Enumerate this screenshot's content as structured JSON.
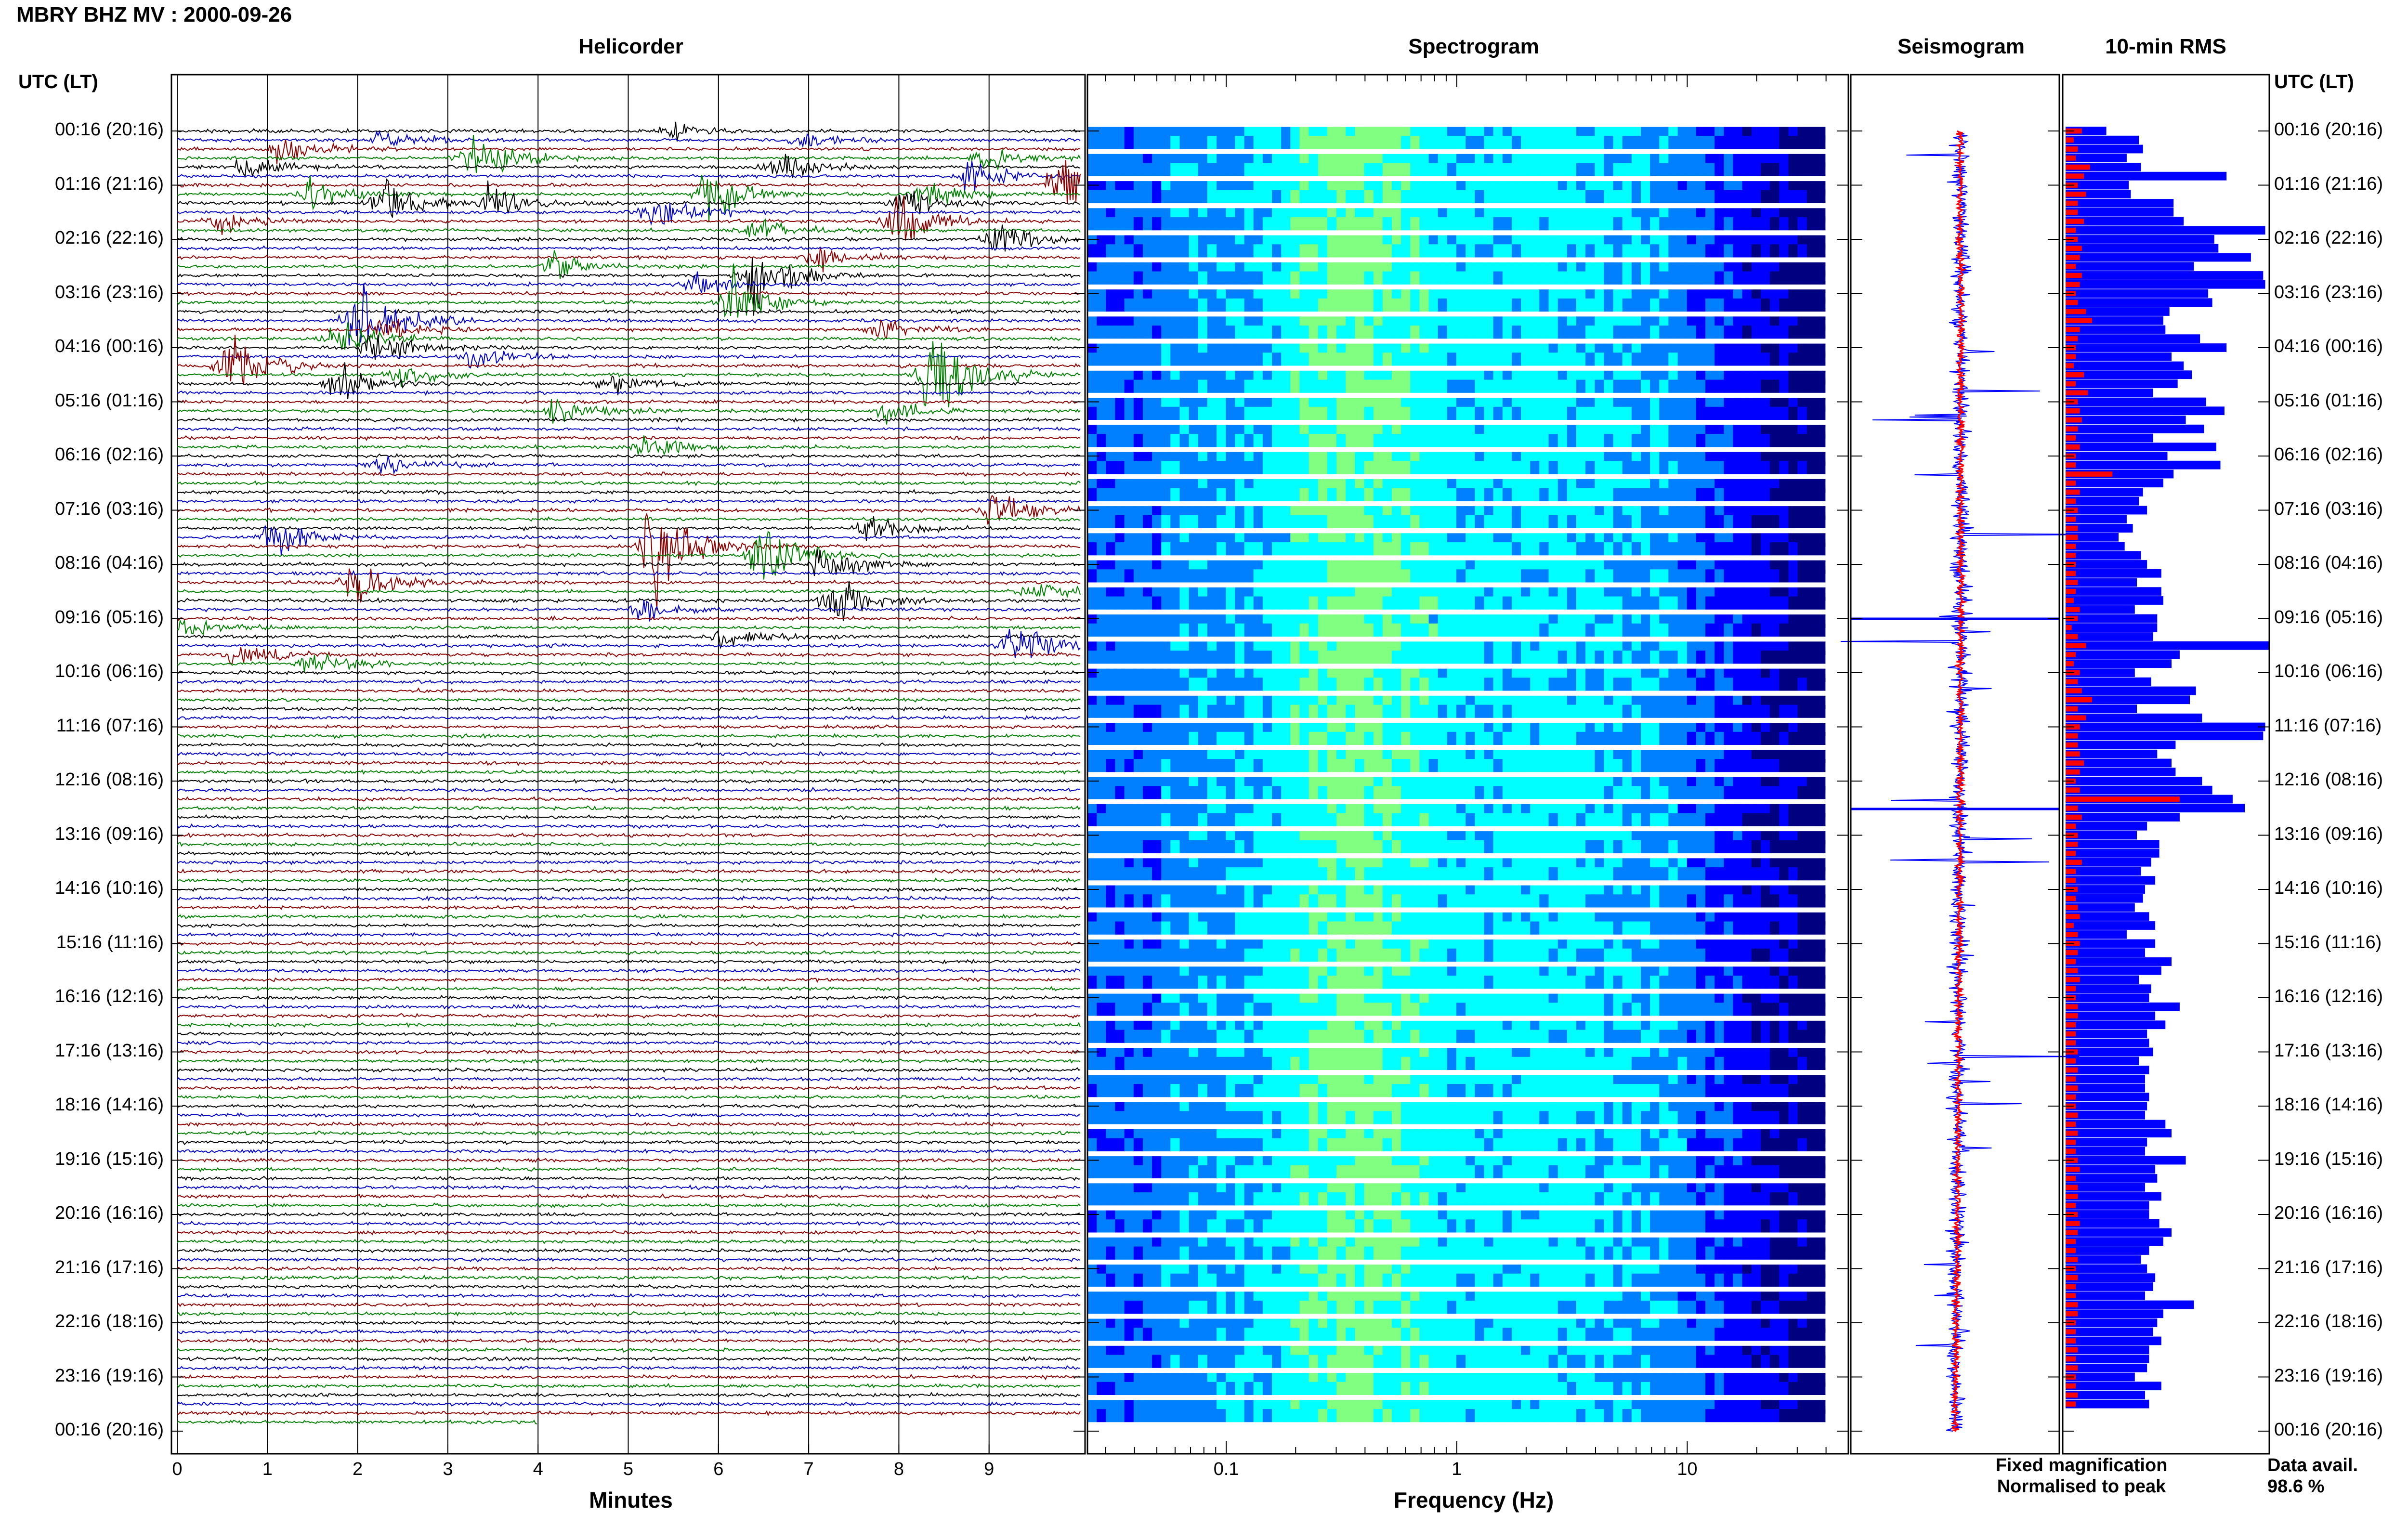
{
  "header": {
    "title": "MBRY BHZ MV : 2000-09-26"
  },
  "panels": {
    "helicorder": "Helicorder",
    "spectrogram": "Spectrogram",
    "seismogram": "Seismogram",
    "rms": "10-min RMS"
  },
  "time_axis": {
    "label": "UTC (LT)",
    "ticks": [
      "00:16 (20:16)",
      "01:16 (21:16)",
      "02:16 (22:16)",
      "03:16 (23:16)",
      "04:16 (00:16)",
      "05:16 (01:16)",
      "06:16 (02:16)",
      "07:16 (03:16)",
      "08:16 (04:16)",
      "09:16 (05:16)",
      "10:16 (06:16)",
      "11:16 (07:16)",
      "12:16 (08:16)",
      "13:16 (09:16)",
      "14:16 (10:16)",
      "15:16 (11:16)",
      "16:16 (12:16)",
      "17:16 (13:16)",
      "18:16 (14:16)",
      "19:16 (15:16)",
      "20:16 (16:16)",
      "21:16 (17:16)",
      "22:16 (18:16)",
      "23:16 (19:16)",
      "00:16 (20:16)"
    ]
  },
  "legend": {
    "fixed": "Fixed magnification",
    "normalised": "Normalised to peak",
    "fixed_color": "#0000ff",
    "normalised_color": "#ff0000"
  },
  "availability": {
    "label": "Data avail.",
    "value": "98.6 %"
  },
  "colors": {
    "trace_cycle": [
      "#000000",
      "#0000c8",
      "#8b0000",
      "#008000"
    ]
  },
  "chart_data": [
    {
      "type": "line",
      "name_hint": "helicorder",
      "xlabel": "Minutes",
      "xlim": [
        0,
        10
      ],
      "xticks": [
        0,
        1,
        2,
        3,
        4,
        5,
        6,
        7,
        8,
        9
      ],
      "lines_per_hour": 6,
      "hours": 24,
      "events": [
        {
          "row": 0,
          "minute": 5.5,
          "amp": 0.6
        },
        {
          "row": 1,
          "minute": 6.9,
          "amp": 0.9
        },
        {
          "row": 1,
          "minute": 2.3,
          "amp": 0.8
        },
        {
          "row": 2,
          "minute": 1.2,
          "amp": 1.4
        },
        {
          "row": 3,
          "minute": 3.3,
          "amp": 2.4
        },
        {
          "row": 3,
          "minute": 9.0,
          "amp": 1.0
        },
        {
          "row": 4,
          "minute": 0.8,
          "amp": 1.0
        },
        {
          "row": 4,
          "minute": 6.7,
          "amp": 1.6
        },
        {
          "row": 5,
          "minute": 8.8,
          "amp": 1.3
        },
        {
          "row": 6,
          "minute": 9.8,
          "amp": 2.6
        },
        {
          "row": 7,
          "minute": 5.9,
          "amp": 2.0
        },
        {
          "row": 7,
          "minute": 1.5,
          "amp": 1.2
        },
        {
          "row": 7,
          "minute": 8.3,
          "amp": 1.2
        },
        {
          "row": 8,
          "minute": 2.3,
          "amp": 2.0
        },
        {
          "row": 8,
          "minute": 3.5,
          "amp": 1.5
        },
        {
          "row": 8,
          "minute": 8.1,
          "amp": 1.3
        },
        {
          "row": 9,
          "minute": 5.3,
          "amp": 1.6
        },
        {
          "row": 10,
          "minute": 8.0,
          "amp": 2.4
        },
        {
          "row": 10,
          "minute": 0.5,
          "amp": 1.0
        },
        {
          "row": 11,
          "minute": 6.4,
          "amp": 1.0
        },
        {
          "row": 12,
          "minute": 9.1,
          "amp": 1.7
        },
        {
          "row": 14,
          "minute": 7.1,
          "amp": 0.9
        },
        {
          "row": 15,
          "minute": 4.2,
          "amp": 1.0
        },
        {
          "row": 16,
          "minute": 6.4,
          "amp": 3.2
        },
        {
          "row": 17,
          "minute": 5.8,
          "amp": 1.1
        },
        {
          "row": 19,
          "minute": 6.2,
          "amp": 2.2
        },
        {
          "row": 21,
          "minute": 2.0,
          "amp": 4.0
        },
        {
          "row": 22,
          "minute": 2.3,
          "amp": 1.2
        },
        {
          "row": 22,
          "minute": 7.8,
          "amp": 1.1
        },
        {
          "row": 23,
          "minute": 1.8,
          "amp": 1.5
        },
        {
          "row": 24,
          "minute": 2.2,
          "amp": 1.4
        },
        {
          "row": 25,
          "minute": 3.3,
          "amp": 1.2
        },
        {
          "row": 26,
          "minute": 0.6,
          "amp": 3.0
        },
        {
          "row": 27,
          "minute": 2.5,
          "amp": 1.0
        },
        {
          "row": 27,
          "minute": 8.4,
          "amp": 4.5
        },
        {
          "row": 28,
          "minute": 1.8,
          "amp": 1.4
        },
        {
          "row": 28,
          "minute": 4.8,
          "amp": 0.9
        },
        {
          "row": 31,
          "minute": 4.2,
          "amp": 1.1
        },
        {
          "row": 31,
          "minute": 7.9,
          "amp": 0.9
        },
        {
          "row": 35,
          "minute": 5.2,
          "amp": 0.9
        },
        {
          "row": 37,
          "minute": 2.3,
          "amp": 0.8
        },
        {
          "row": 42,
          "minute": 9.1,
          "amp": 1.8
        },
        {
          "row": 44,
          "minute": 7.7,
          "amp": 1.0
        },
        {
          "row": 45,
          "minute": 1.1,
          "amp": 1.6
        },
        {
          "row": 46,
          "minute": 5.3,
          "amp": 4.2
        },
        {
          "row": 47,
          "minute": 6.5,
          "amp": 3.0
        },
        {
          "row": 48,
          "minute": 7.2,
          "amp": 1.6
        },
        {
          "row": 50,
          "minute": 2.0,
          "amp": 1.6
        },
        {
          "row": 51,
          "minute": 9.5,
          "amp": 1.1
        },
        {
          "row": 52,
          "minute": 7.3,
          "amp": 2.2
        },
        {
          "row": 53,
          "minute": 5.2,
          "amp": 0.9
        },
        {
          "row": 55,
          "minute": 0.1,
          "amp": 0.8
        },
        {
          "row": 56,
          "minute": 6.1,
          "amp": 1.1
        },
        {
          "row": 57,
          "minute": 9.3,
          "amp": 2.0
        },
        {
          "row": 58,
          "minute": 0.7,
          "amp": 1.2
        },
        {
          "row": 59,
          "minute": 1.5,
          "amp": 1.0
        }
      ]
    },
    {
      "type": "heatmap",
      "name_hint": "spectrogram",
      "xlabel": "Frequency (Hz)",
      "xscale": "log",
      "xlim": [
        0.025,
        50
      ],
      "xticks": [
        0.1,
        1,
        10
      ],
      "xtick_labels": [
        "0.1",
        "1",
        "10"
      ],
      "colormap": [
        "#000080",
        "#0000ff",
        "#0080ff",
        "#00ffff",
        "#80ff80",
        "#ffff00"
      ]
    },
    {
      "type": "line",
      "name_hint": "seismogram",
      "series": [
        {
          "name": "Fixed magnification"
        },
        {
          "name": "Normalised to peak"
        }
      ]
    },
    {
      "type": "bar",
      "name_hint": "rms",
      "orientation": "horizontal",
      "series": [
        {
          "name": "Fixed magnification",
          "values": [
            0.2,
            0.36,
            0.38,
            0.3,
            0.37,
            0.79,
            0.31,
            0.32,
            0.53,
            0.53,
            0.58,
            0.98,
            0.73,
            0.75,
            0.91,
            0.63,
            0.97,
            0.98,
            0.7,
            0.72,
            0.51,
            0.48,
            0.49,
            0.66,
            0.79,
            0.52,
            0.58,
            0.62,
            0.55,
            0.43,
            0.69,
            0.78,
            0.59,
            0.68,
            0.43,
            0.74,
            0.5,
            0.76,
            0.53,
            0.48,
            0.38,
            0.36,
            0.4,
            0.3,
            0.33,
            0.26,
            0.29,
            0.37,
            0.4,
            0.47,
            0.35,
            0.47,
            0.48,
            0.34,
            0.45,
            0.45,
            0.43,
            1.0,
            0.56,
            0.52,
            0.34,
            0.42,
            0.64,
            0.61,
            0.35,
            0.67,
            0.98,
            0.97,
            0.54,
            0.45,
            0.52,
            0.54,
            0.67,
            0.72,
            0.82,
            0.88,
            0.56,
            0.4,
            0.35,
            0.46,
            0.46,
            0.42,
            0.37,
            0.44,
            0.39,
            0.38,
            0.34,
            0.41,
            0.44,
            0.3,
            0.44,
            0.39,
            0.52,
            0.47,
            0.36,
            0.42,
            0.41,
            0.56,
            0.44,
            0.49,
            0.4,
            0.41,
            0.43,
            0.36,
            0.41,
            0.39,
            0.39,
            0.41,
            0.4,
            0.39,
            0.49,
            0.52,
            0.4,
            0.39,
            0.59,
            0.44,
            0.45,
            0.39,
            0.47,
            0.41,
            0.41,
            0.46,
            0.52,
            0.48,
            0.41,
            0.37,
            0.4,
            0.44,
            0.43,
            0.39,
            0.63,
            0.48,
            0.45,
            0.43,
            0.47,
            0.41,
            0.41,
            0.4,
            0.34,
            0.47,
            0.39,
            0.41
          ]
        },
        {
          "name": "Normalised to peak",
          "values": [
            0.08,
            0.04,
            0.06,
            0.05,
            0.12,
            0.09,
            0.06,
            0.1,
            0.06,
            0.06,
            0.09,
            0.05,
            0.06,
            0.08,
            0.07,
            0.05,
            0.08,
            0.07,
            0.05,
            0.06,
            0.1,
            0.13,
            0.07,
            0.06,
            0.05,
            0.05,
            0.04,
            0.09,
            0.05,
            0.11,
            0.06,
            0.07,
            0.08,
            0.06,
            0.05,
            0.07,
            0.05,
            0.05,
            0.23,
            0.05,
            0.07,
            0.05,
            0.06,
            0.05,
            0.06,
            0.06,
            0.05,
            0.05,
            0.05,
            0.05,
            0.06,
            0.05,
            0.04,
            0.07,
            0.06,
            0.03,
            0.06,
            0.1,
            0.05,
            0.04,
            0.07,
            0.06,
            0.08,
            0.13,
            0.06,
            0.1,
            0.07,
            0.06,
            0.06,
            0.07,
            0.09,
            0.07,
            0.05,
            0.07,
            0.56,
            0.06,
            0.08,
            0.05,
            0.06,
            0.06,
            0.05,
            0.08,
            0.05,
            0.05,
            0.06,
            0.05,
            0.06,
            0.07,
            0.04,
            0.06,
            0.07,
            0.06,
            0.05,
            0.06,
            0.07,
            0.05,
            0.05,
            0.06,
            0.06,
            0.05,
            0.05,
            0.05,
            0.06,
            0.05,
            0.06,
            0.05,
            0.06,
            0.05,
            0.05,
            0.06,
            0.05,
            0.06,
            0.05,
            0.05,
            0.06,
            0.07,
            0.05,
            0.06,
            0.06,
            0.05,
            0.06,
            0.07,
            0.06,
            0.05,
            0.05,
            0.06,
            0.05,
            0.06,
            0.05,
            0.05,
            0.06,
            0.06,
            0.05,
            0.05,
            0.05,
            0.06,
            0.05,
            0.06,
            0.05,
            0.05,
            0.06,
            0.05
          ]
        }
      ]
    }
  ]
}
